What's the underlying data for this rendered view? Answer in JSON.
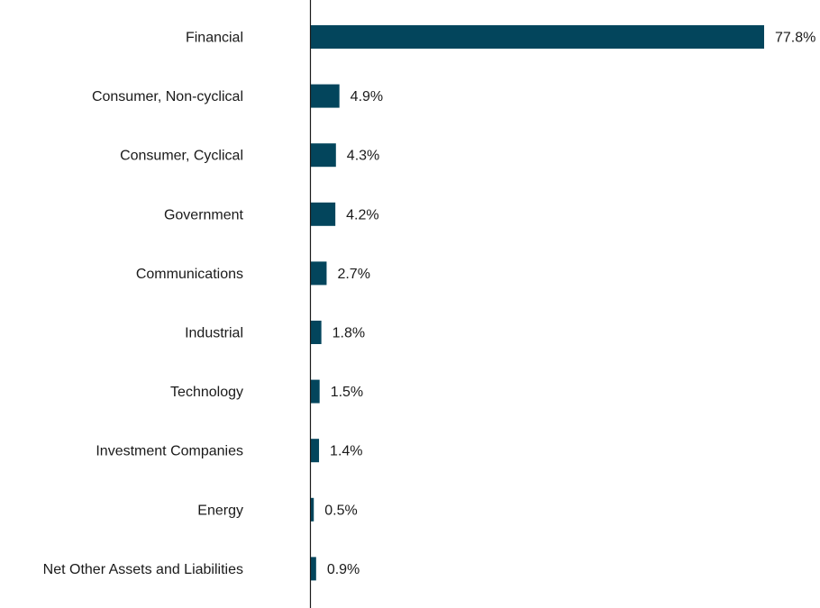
{
  "chart_data": {
    "type": "bar",
    "orientation": "horizontal",
    "categories": [
      "Financial",
      "Consumer, Non-cyclical",
      "Consumer, Cyclical",
      "Government",
      "Communications",
      "Industrial",
      "Technology",
      "Investment Companies",
      "Energy",
      "Net Other Assets and Liabilities"
    ],
    "values": [
      77.8,
      4.9,
      4.3,
      4.2,
      2.7,
      1.8,
      1.5,
      1.4,
      0.5,
      0.9
    ],
    "value_labels": [
      "77.8%",
      "4.9%",
      "4.3%",
      "4.2%",
      "2.7%",
      "1.8%",
      "1.5%",
      "1.4%",
      "0.5%",
      "0.9%"
    ],
    "bar_color": "#03455c",
    "xlim": [
      0,
      77.8
    ],
    "grid": false,
    "legend": "none"
  }
}
